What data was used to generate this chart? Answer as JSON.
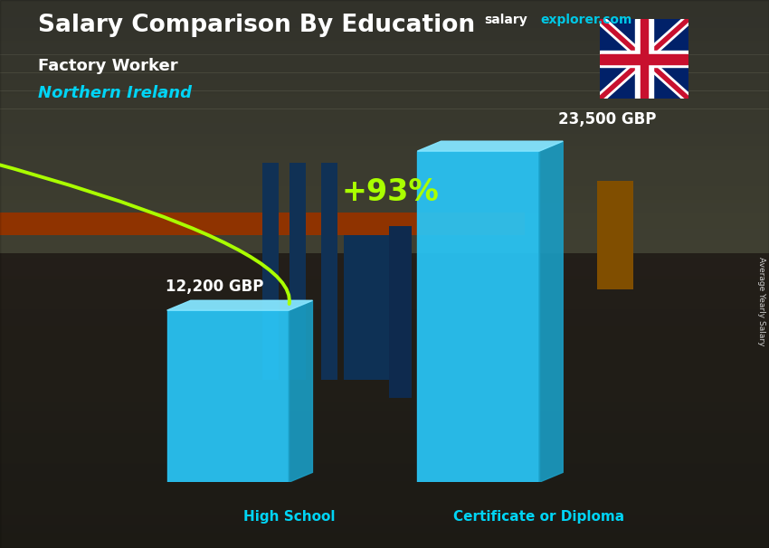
{
  "title_main": "Salary Comparison By Education",
  "title_sub": "Factory Worker",
  "title_location": "Northern Ireland",
  "categories": [
    "High School",
    "Certificate or Diploma"
  ],
  "values": [
    12200,
    23500
  ],
  "labels": [
    "12,200 GBP",
    "23,500 GBP"
  ],
  "bar_color_face": "#29c5f6",
  "bar_color_top": "#85e5ff",
  "bar_color_side": "#1a9dc4",
  "percent_label": "+93%",
  "percent_color": "#aaff00",
  "arrow_color": "#aaff00",
  "xlabel_color": "#00d4f5",
  "title_color": "#ffffff",
  "subtitle_color": "#ffffff",
  "location_color": "#00d4f5",
  "label_color": "#ffffff",
  "site_text": "salary",
  "site_text2": "explorer.com",
  "site_color1": "#ffffff",
  "site_color2": "#00c8e6",
  "rotated_label": "Average Yearly Salary",
  "ylim": [
    0,
    28000
  ],
  "bar_width": 0.18,
  "bar_positions": [
    0.28,
    0.65
  ],
  "fig_width": 8.5,
  "fig_height": 6.06
}
